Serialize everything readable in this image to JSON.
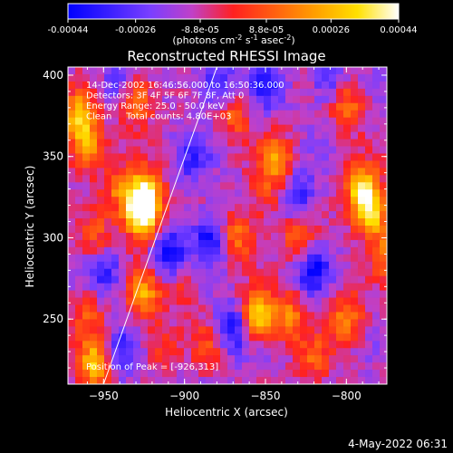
{
  "chart_data": {
    "type": "heatmap",
    "title": "Reconstructed RHESSI Image",
    "xlabel": "Heliocentric X (arcsec)",
    "ylabel": "Heliocentric Y (arcsec)",
    "xlim": [
      -972,
      -775
    ],
    "ylim": [
      210,
      405
    ],
    "xticks": [
      -950,
      -900,
      -850,
      -800
    ],
    "yticks": [
      250,
      300,
      350,
      400
    ],
    "colorbar": {
      "tick_values": [
        -0.00044,
        -0.00026,
        -8.8e-05,
        8.8e-05,
        0.00026,
        0.00044
      ],
      "tick_labels": [
        "-0.00044",
        "-0.00026",
        "-8.8e-05",
        "8.8e-05",
        "0.00026",
        "0.00044"
      ],
      "unit_parts": [
        "(photons cm",
        "-2",
        " s",
        "-1",
        " asec",
        "-2",
        ")"
      ],
      "colors": [
        "#0000ff",
        "#3a1fff",
        "#7a3fff",
        "#c040c8",
        "#ff2020",
        "#ff6010",
        "#ffa000",
        "#ffe000",
        "#ffffff"
      ]
    },
    "info": [
      "14-Dec-2002 16:46:56.000 to 16:50:36.000",
      "Detectors: 3F 4F 5F 6F 7F 8F, Att 0",
      "Energy Range: 25.0 - 50.0 keV",
      "Clean     Total counts: 4.80E+03"
    ],
    "peak_label": "Position of Peak = [-926,313]",
    "limb_line": {
      "x": [
        -950,
        -880
      ],
      "y": [
        210,
        405
      ]
    },
    "hot_spots": [
      {
        "x": -926,
        "y": 313,
        "v": 1.0
      },
      {
        "x": -924,
        "y": 326,
        "v": 0.85
      },
      {
        "x": -955,
        "y": 222,
        "v": 0.8
      },
      {
        "x": -855,
        "y": 252,
        "v": 0.85
      },
      {
        "x": -785,
        "y": 315,
        "v": 0.85
      },
      {
        "x": -790,
        "y": 330,
        "v": 0.75
      },
      {
        "x": -965,
        "y": 375,
        "v": 0.7
      },
      {
        "x": -960,
        "y": 355,
        "v": 0.65
      },
      {
        "x": -925,
        "y": 265,
        "v": 0.6
      },
      {
        "x": -930,
        "y": 385,
        "v": 0.6
      },
      {
        "x": -843,
        "y": 348,
        "v": 0.6
      },
      {
        "x": -800,
        "y": 382,
        "v": 0.55
      },
      {
        "x": -800,
        "y": 250,
        "v": 0.55
      },
      {
        "x": -867,
        "y": 302,
        "v": 0.5
      },
      {
        "x": -835,
        "y": 252,
        "v": 0.5
      },
      {
        "x": -940,
        "y": 330,
        "v": 0.45
      },
      {
        "x": -830,
        "y": 300,
        "v": 0.45
      },
      {
        "x": -870,
        "y": 375,
        "v": 0.4
      },
      {
        "x": -775,
        "y": 290,
        "v": 0.45
      },
      {
        "x": -955,
        "y": 300,
        "v": 0.35
      },
      {
        "x": -900,
        "y": 270,
        "v": 0.3
      },
      {
        "x": -885,
        "y": 235,
        "v": 0.3
      },
      {
        "x": -820,
        "y": 225,
        "v": 0.35
      },
      {
        "x": -915,
        "y": 233,
        "v": 0.3
      },
      {
        "x": -960,
        "y": 255,
        "v": 0.35
      },
      {
        "x": -850,
        "y": 325,
        "v": 0.3
      }
    ],
    "cold_spots": [
      {
        "x": -910,
        "y": 290,
        "v": -0.6
      },
      {
        "x": -885,
        "y": 300,
        "v": -0.55
      },
      {
        "x": -870,
        "y": 245,
        "v": -0.55
      },
      {
        "x": -820,
        "y": 280,
        "v": -0.5
      },
      {
        "x": -940,
        "y": 230,
        "v": -0.45
      },
      {
        "x": -880,
        "y": 395,
        "v": -0.45
      },
      {
        "x": -850,
        "y": 395,
        "v": -0.45
      },
      {
        "x": -810,
        "y": 395,
        "v": -0.4
      },
      {
        "x": -950,
        "y": 280,
        "v": -0.4
      },
      {
        "x": -830,
        "y": 325,
        "v": -0.45
      },
      {
        "x": -895,
        "y": 350,
        "v": -0.35
      },
      {
        "x": -940,
        "y": 395,
        "v": -0.35
      }
    ]
  },
  "footer": {
    "timestamp": "4-May-2022 06:31"
  }
}
